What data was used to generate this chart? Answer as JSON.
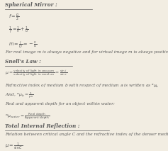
{
  "bg_color": "#f2ede2",
  "text_color": "#5a5a5a",
  "title1": "Spherical Mirror :",
  "title2": "Snell’s Law :",
  "title3": "Total Internal Reflection :",
  "formulas": {
    "f_R2": "$f = \\frac{R}{2}$",
    "mirror_eq": "$\\frac{1}{f} = \\frac{1}{v} + \\frac{1}{u}$",
    "magnif": "$m = \\frac{I}{O} = -\\frac{v}{u}$",
    "snell": "$\\mu = \\frac{\\mathrm{velocity\\ of\\ light\\ in\\ vacuum}}{\\mathrm{velocity\\ of\\ light\\ in\\ medium}} = \\frac{\\sin\\,i}{\\sin\\,r}$",
    "refr_note": "Refractive index of medium $b$ with respect of medium $a$ is written as $^a\\mu_b$",
    "and_mu": "And, $^a\\mu_b = \\frac{1}{\\mu_a}$",
    "real_apparent": "$^w\\mu_{water} = \\frac{\\mathrm{Real\\ depth}}{\\mathrm{Apparent\\ depth}}$",
    "total_rel": "$\\mu = \\frac{1}{\\sin C}$"
  },
  "normal_texts": {
    "real_virtual": "For real image m is always negative and for virtual image m is always positive.",
    "real_apparent_label": "Real and apparent depth for an object within water:",
    "critical_angle": "Relation between critical angle C and the refractive index of the denser medium is"
  },
  "underline_color": "#5a5a5a",
  "base_fs": 4.5,
  "title_fs": 5.2,
  "formula_fs": 4.8,
  "small_fs": 4.2
}
